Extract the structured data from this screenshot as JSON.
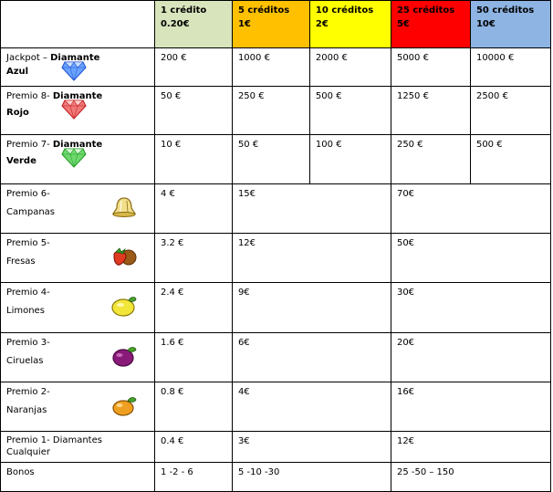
{
  "header": {
    "cols": [
      {
        "line1": "1 crédito",
        "line2": "0.20€",
        "color": "#d8e4bc"
      },
      {
        "line1": "5 créditos",
        "line2": "1€",
        "color": "#ffc000"
      },
      {
        "line1": "10 créditos",
        "line2": "2€",
        "color": "#ffff00"
      },
      {
        "line1": "25 créditos",
        "line2": "5€",
        "color": "#ff0000"
      },
      {
        "line1": "50 créditos",
        "line2": "10€",
        "color": "#8db4e2"
      }
    ]
  },
  "rows": [
    {
      "label_a": "Jackpot – ",
      "label_b": "Diamante",
      "label_c": "Azul",
      "icon": "blue-diamond-icon",
      "values": [
        "200 €",
        "1000 €",
        "2000 €",
        "5000 €",
        "10000 €"
      ]
    },
    {
      "label_a": "Premio 8- ",
      "label_b": "Diamante",
      "label_c": "Rojo",
      "icon": "red-diamond-icon",
      "values": [
        "50 €",
        "250 €",
        "500 €",
        "1250 €",
        "2500 €"
      ]
    },
    {
      "label_a": "Premio 7- ",
      "label_b": "Diamante",
      "label_c": "Verde",
      "icon": "green-diamond-icon",
      "values": [
        "10 €",
        "50 €",
        "100 €",
        "250 €",
        "500 €"
      ]
    },
    {
      "label_a": "Premio 6-",
      "label_c": "Campanas",
      "icon": "bell-icon",
      "values": [
        "4 €",
        "15€",
        "70€"
      ]
    },
    {
      "label_a": "Premio 5-",
      "label_c": "Fresas",
      "icon": "strawberry-icon",
      "values": [
        "3.2 €",
        "12€",
        "50€"
      ]
    },
    {
      "label_a": "Premio 4-",
      "label_c": "Limones",
      "icon": "lemon-icon",
      "values": [
        "2.4 €",
        "9€",
        "30€"
      ]
    },
    {
      "label_a": "Premio 3-",
      "label_c": "Ciruelas",
      "icon": "plum-icon",
      "values": [
        "1.6 €",
        "6€",
        "20€"
      ]
    },
    {
      "label_a": "Premio 2-",
      "label_c": "Naranjas",
      "icon": "orange-icon",
      "values": [
        "0.8 €",
        "4€",
        "16€"
      ]
    },
    {
      "label_a": "Premio 1- Diamantes",
      "label_c": "Cualquier",
      "values": [
        "0.4 €",
        "3€",
        "12€"
      ]
    }
  ],
  "bonos": {
    "label": "Bonos",
    "values": [
      "1 -2 - 6",
      "5 -10 -30",
      "25 -50 – 150"
    ]
  }
}
